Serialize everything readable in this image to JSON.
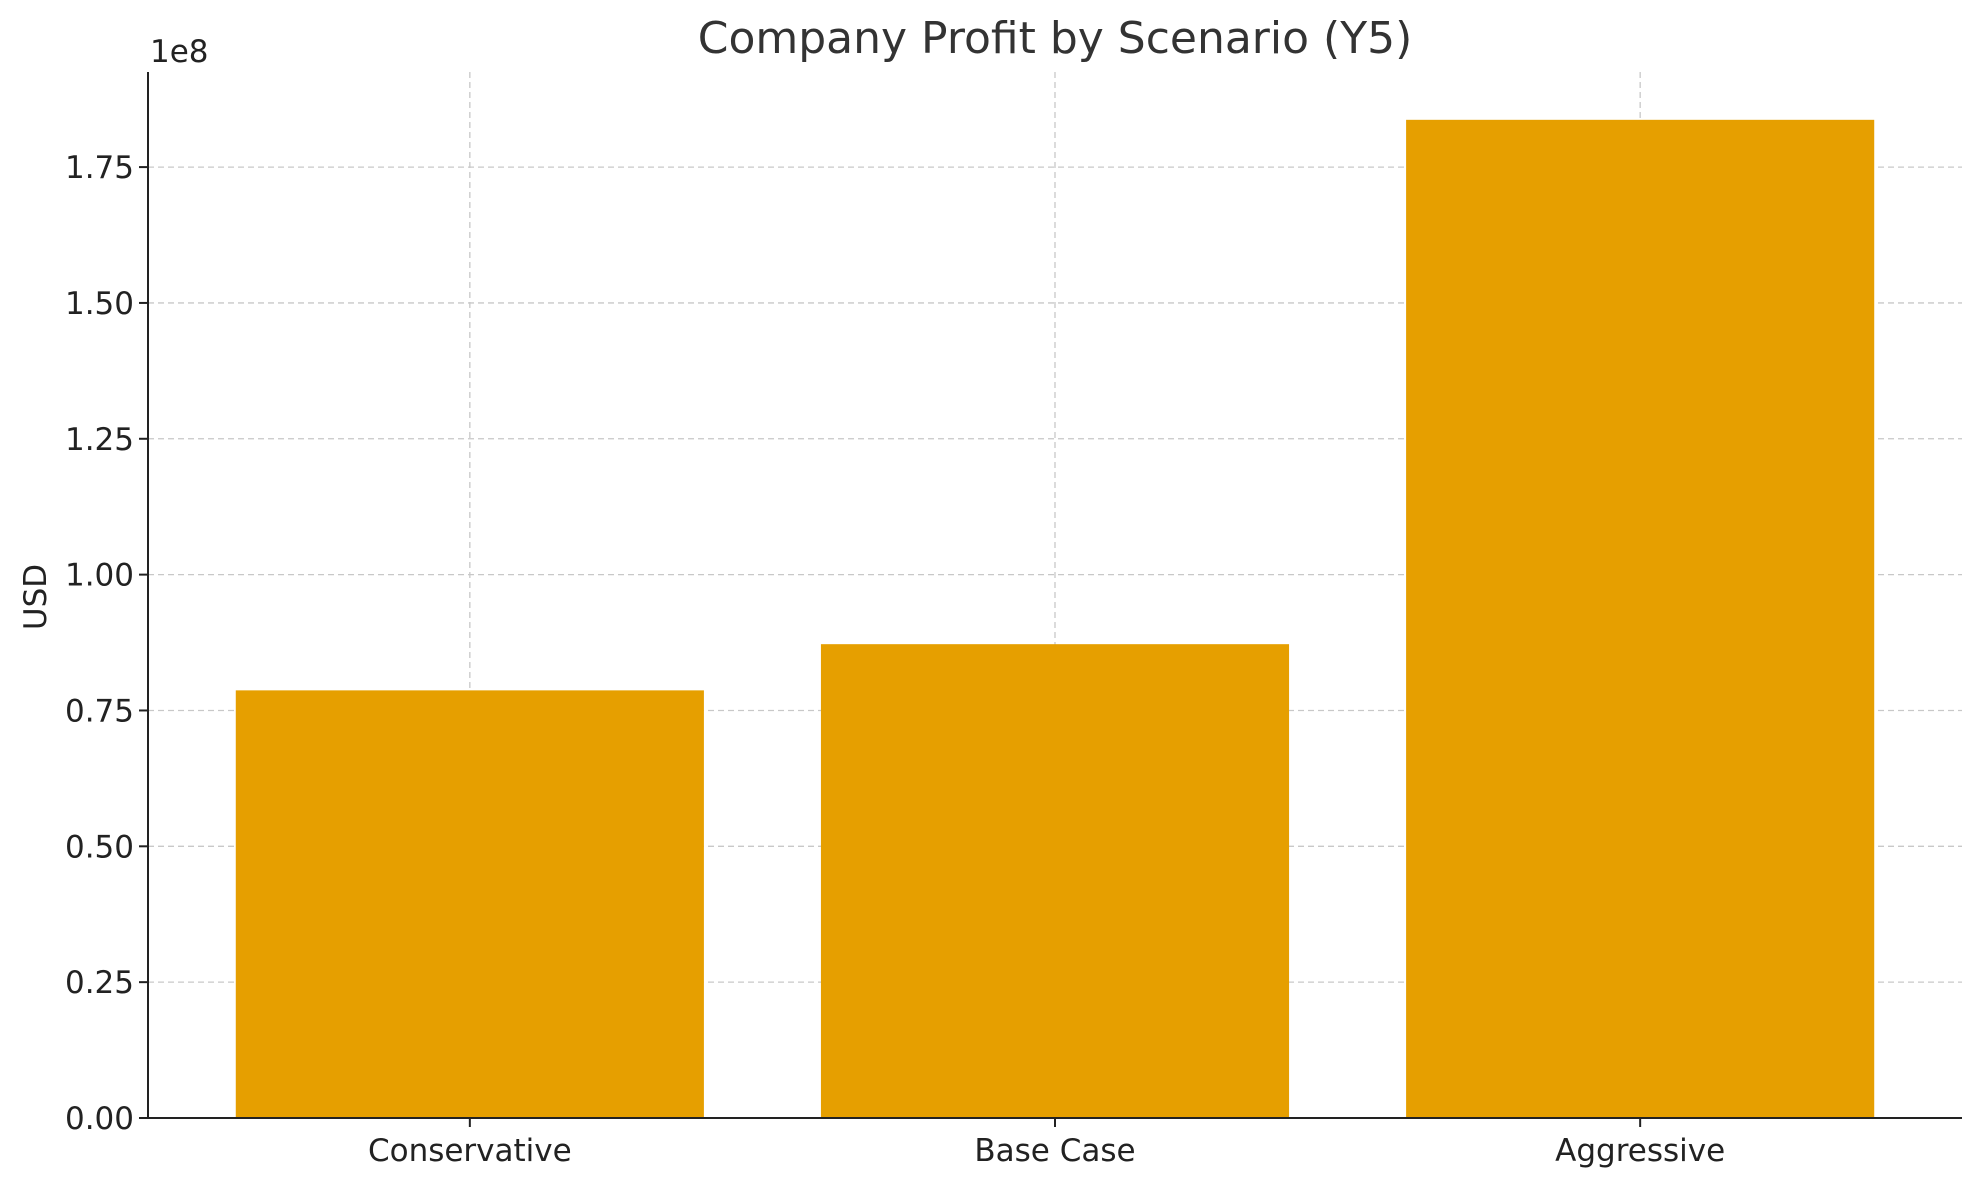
{
  "chart_data": {
    "type": "bar",
    "title": "Company Profit by Scenario (Y5)",
    "xlabel": "",
    "ylabel": "USD",
    "offset_label": "1e8",
    "categories": [
      "Conservative",
      "Base Case",
      "Aggressive"
    ],
    "values": [
      78700000,
      87200000,
      183700000
    ],
    "ylim": [
      0,
      192500000
    ],
    "yticks": [
      0,
      25000000,
      50000000,
      75000000,
      100000000,
      125000000,
      150000000,
      175000000
    ],
    "ytick_labels": [
      "0.00",
      "0.25",
      "0.50",
      "0.75",
      "1.00",
      "1.25",
      "1.50",
      "1.75"
    ],
    "grid": true,
    "bar_color": "#E69F00"
  }
}
